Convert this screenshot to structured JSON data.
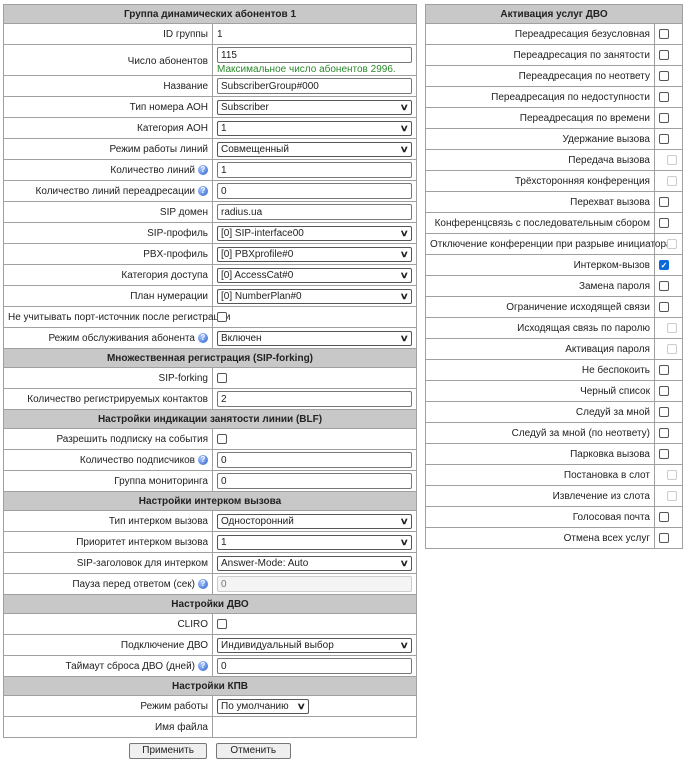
{
  "left": {
    "rows": [
      {
        "type": "header",
        "label": "Группа динамических абонентов 1"
      },
      {
        "type": "text",
        "label": "ID группы",
        "value": "1"
      },
      {
        "type": "input",
        "label": "Число абонентов",
        "value": "115",
        "note": "Максимальное число абонентов 2996."
      },
      {
        "type": "input",
        "label": "Название",
        "value": "SubscriberGroup#000"
      },
      {
        "type": "select",
        "label": "Тип номера АОН",
        "value": "Subscriber"
      },
      {
        "type": "select",
        "label": "Категория АОН",
        "value": "1"
      },
      {
        "type": "select",
        "label": "Режим работы линий",
        "value": "Совмещенный"
      },
      {
        "type": "input",
        "label": "Количество линий",
        "value": "1",
        "help": true
      },
      {
        "type": "input",
        "label": "Количество линий переадресации",
        "value": "0",
        "help": true
      },
      {
        "type": "input",
        "label": "SIP домен",
        "value": "radius.ua"
      },
      {
        "type": "select",
        "label": "SIP-профиль",
        "value": "[0] SIP-interface00"
      },
      {
        "type": "select",
        "label": "PBX-профиль",
        "value": "[0] PBXprofile#0"
      },
      {
        "type": "select",
        "label": "Категория доступа",
        "value": "[0] AccessCat#0"
      },
      {
        "type": "select",
        "label": "План нумерации",
        "value": "[0] NumberPlan#0"
      },
      {
        "type": "checkbox",
        "label": "Не учитывать порт-источник после регистрации",
        "checked": false
      },
      {
        "type": "select",
        "label": "Режим обслуживания абонента",
        "value": "Включен",
        "help": true
      },
      {
        "type": "header",
        "label": "Множественная регистрация (SIP-forking)"
      },
      {
        "type": "checkbox",
        "label": "SIP-forking",
        "checked": false
      },
      {
        "type": "input",
        "label": "Количество регистрируемых контактов",
        "value": "2"
      },
      {
        "type": "header",
        "label": "Настройки индикации занятости линии (BLF)"
      },
      {
        "type": "checkbox",
        "label": "Разрешить подписку на события",
        "checked": false
      },
      {
        "type": "input",
        "label": "Количество подписчиков",
        "value": "0",
        "help": true
      },
      {
        "type": "input",
        "label": "Группа мониторинга",
        "value": "0"
      },
      {
        "type": "header",
        "label": "Настройки интерком вызова"
      },
      {
        "type": "select",
        "label": "Тип интерком вызова",
        "value": "Односторонний"
      },
      {
        "type": "select",
        "label": "Приоритет интерком вызова",
        "value": "1"
      },
      {
        "type": "select",
        "label": "SIP-заголовок для интерком",
        "value": "Answer-Mode: Auto"
      },
      {
        "type": "input",
        "label": "Пауза перед ответом (сек)",
        "value": "0",
        "help": true,
        "disabled": true
      },
      {
        "type": "header",
        "label": "Настройки ДВО"
      },
      {
        "type": "checkbox",
        "label": "CLIRO",
        "checked": false
      },
      {
        "type": "select",
        "label": "Подключение ДВО",
        "value": "Индивидуальный выбор"
      },
      {
        "type": "input",
        "label": "Таймаут сброса ДВО (дней)",
        "value": "0",
        "help": true
      },
      {
        "type": "header",
        "label": "Настройки КПВ"
      },
      {
        "type": "select",
        "label": "Режим работы",
        "value": "По умолчанию",
        "short": true
      },
      {
        "type": "text",
        "label": "Имя файла",
        "value": ""
      }
    ]
  },
  "right": {
    "title": "Активация услуг ДВО",
    "items": [
      {
        "label": "Переадресация безусловная",
        "checked": false,
        "disabled": false
      },
      {
        "label": "Переадресация по занятости",
        "checked": false,
        "disabled": false
      },
      {
        "label": "Переадресация по неответу",
        "checked": false,
        "disabled": false
      },
      {
        "label": "Переадресация по недоступности",
        "checked": false,
        "disabled": false
      },
      {
        "label": "Переадресация по времени",
        "checked": false,
        "disabled": false
      },
      {
        "label": "Удержание вызова",
        "checked": false,
        "disabled": false
      },
      {
        "label": "Передача вызова",
        "checked": false,
        "disabled": true
      },
      {
        "label": "Трёхсторонняя конференция",
        "checked": false,
        "disabled": true
      },
      {
        "label": "Перехват вызова",
        "checked": false,
        "disabled": false
      },
      {
        "label": "Конференцсвязь с последовательным сбором",
        "checked": false,
        "disabled": false
      },
      {
        "label": "Отключение конференции при разрыве инициатора",
        "checked": false,
        "disabled": true
      },
      {
        "label": "Интерком-вызов",
        "checked": true,
        "disabled": false
      },
      {
        "label": "Замена пароля",
        "checked": false,
        "disabled": false
      },
      {
        "label": "Ограничение исходящей связи",
        "checked": false,
        "disabled": false
      },
      {
        "label": "Исходящая связь по паролю",
        "checked": false,
        "disabled": true
      },
      {
        "label": "Активация пароля",
        "checked": false,
        "disabled": true
      },
      {
        "label": "Не беспокоить",
        "checked": false,
        "disabled": false
      },
      {
        "label": "Черный список",
        "checked": false,
        "disabled": false
      },
      {
        "label": "Следуй за мной",
        "checked": false,
        "disabled": false
      },
      {
        "label": "Следуй за мной (по неответу)",
        "checked": false,
        "disabled": false
      },
      {
        "label": "Парковка вызова",
        "checked": false,
        "disabled": false
      },
      {
        "label": "Постановка в слот",
        "checked": false,
        "disabled": true
      },
      {
        "label": "Извлечение из слота",
        "checked": false,
        "disabled": true
      },
      {
        "label": "Голосовая почта",
        "checked": false,
        "disabled": false
      },
      {
        "label": "Отмена всех услуг",
        "checked": false,
        "disabled": false
      }
    ]
  },
  "buttons": {
    "apply": "Применить",
    "cancel": "Отменить"
  },
  "colors": {
    "header_bg": "#c8c8c8",
    "note": "#2a8a2a",
    "checked": "#0a6ad8"
  }
}
